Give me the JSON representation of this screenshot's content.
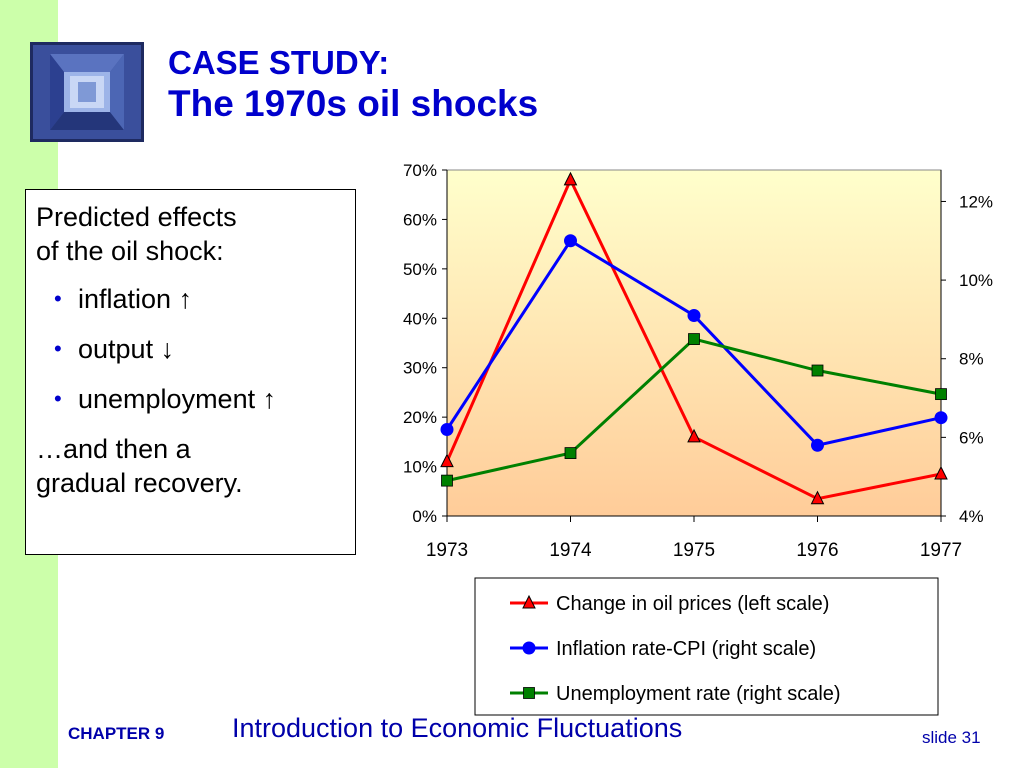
{
  "slide": {
    "title_line1": "CASE STUDY:",
    "title_line2": "The 1970s oil shocks",
    "textbox": {
      "heading_line1": "Predicted effects",
      "heading_line2": "of the oil shock:",
      "bullets": [
        {
          "text": "inflation",
          "arrow": "↑"
        },
        {
          "text": "output",
          "arrow": "↓"
        },
        {
          "text": "unemployment",
          "arrow": "↑"
        }
      ],
      "follow_line1": "…and then a",
      "follow_line2": "gradual recovery."
    },
    "footer": {
      "chapter": "CHAPTER 9",
      "title": "Introduction to Economic Fluctuations",
      "slide": "slide 31"
    }
  },
  "chart_data": {
    "type": "line",
    "x": [
      1973,
      1974,
      1975,
      1976,
      1977
    ],
    "left_axis": {
      "ticks": [
        "0%",
        "10%",
        "20%",
        "30%",
        "40%",
        "50%",
        "60%",
        "70%"
      ],
      "min": 0,
      "max": 70
    },
    "right_axis": {
      "ticks": [
        "4%",
        "6%",
        "8%",
        "10%",
        "12%"
      ],
      "min": 4,
      "max": 12.8
    },
    "series": [
      {
        "name": "Change in oil prices (left scale)",
        "axis": "left",
        "color": "#ff0000",
        "marker": "triangle",
        "values": [
          11,
          68,
          16,
          3.5,
          8.5
        ]
      },
      {
        "name": "Inflation rate-CPI (right scale)",
        "axis": "right",
        "color": "#0000ff",
        "marker": "circle",
        "values": [
          6.2,
          11.0,
          9.1,
          5.8,
          6.5
        ]
      },
      {
        "name": "Unemployment rate (right scale)",
        "axis": "right",
        "color": "#008000",
        "marker": "square",
        "values": [
          4.9,
          5.6,
          8.5,
          7.7,
          7.1
        ]
      }
    ],
    "gradient_colors": [
      "#ffffcc",
      "#ffcc99"
    ]
  }
}
